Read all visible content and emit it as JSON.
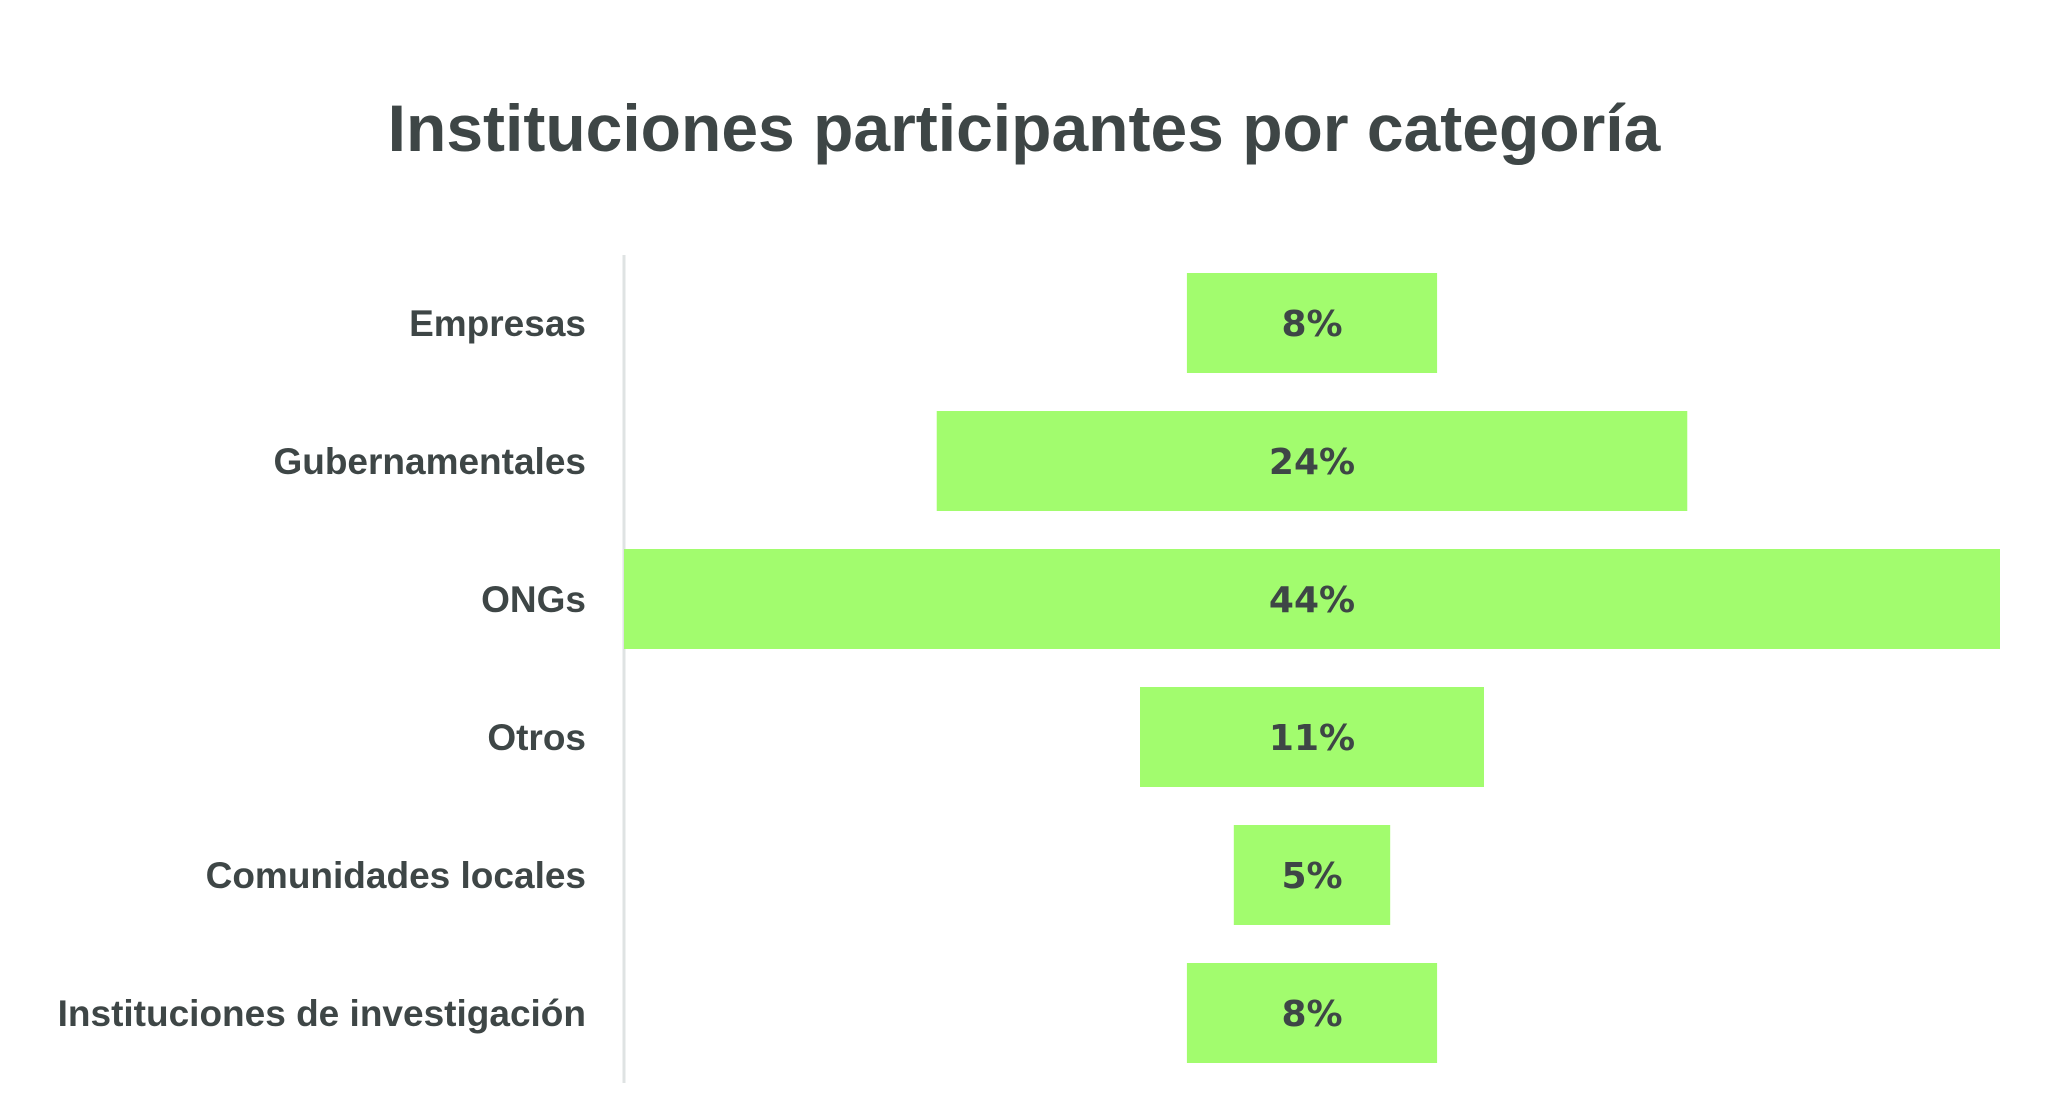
{
  "chart_data": {
    "type": "bar",
    "orientation": "horizontal",
    "alignment": "centered",
    "title": "Instituciones participantes por categoría",
    "xlabel": "",
    "ylabel": "",
    "categories": [
      "Empresas",
      "Gubernamentales",
      "ONGs",
      "Otros",
      "Comunidades locales",
      "Instituciones de investigación"
    ],
    "values": [
      8,
      24,
      44,
      11,
      5,
      8
    ],
    "value_labels": [
      "8%",
      "24%",
      "44%",
      "11%",
      "5%",
      "8%"
    ],
    "unit": "%",
    "xlim": [
      0,
      44
    ],
    "grid": false,
    "legend": "none",
    "colors": {
      "bar": "#a2fc6e",
      "text": "#3e4646",
      "axis": "#dfe3e3"
    }
  }
}
